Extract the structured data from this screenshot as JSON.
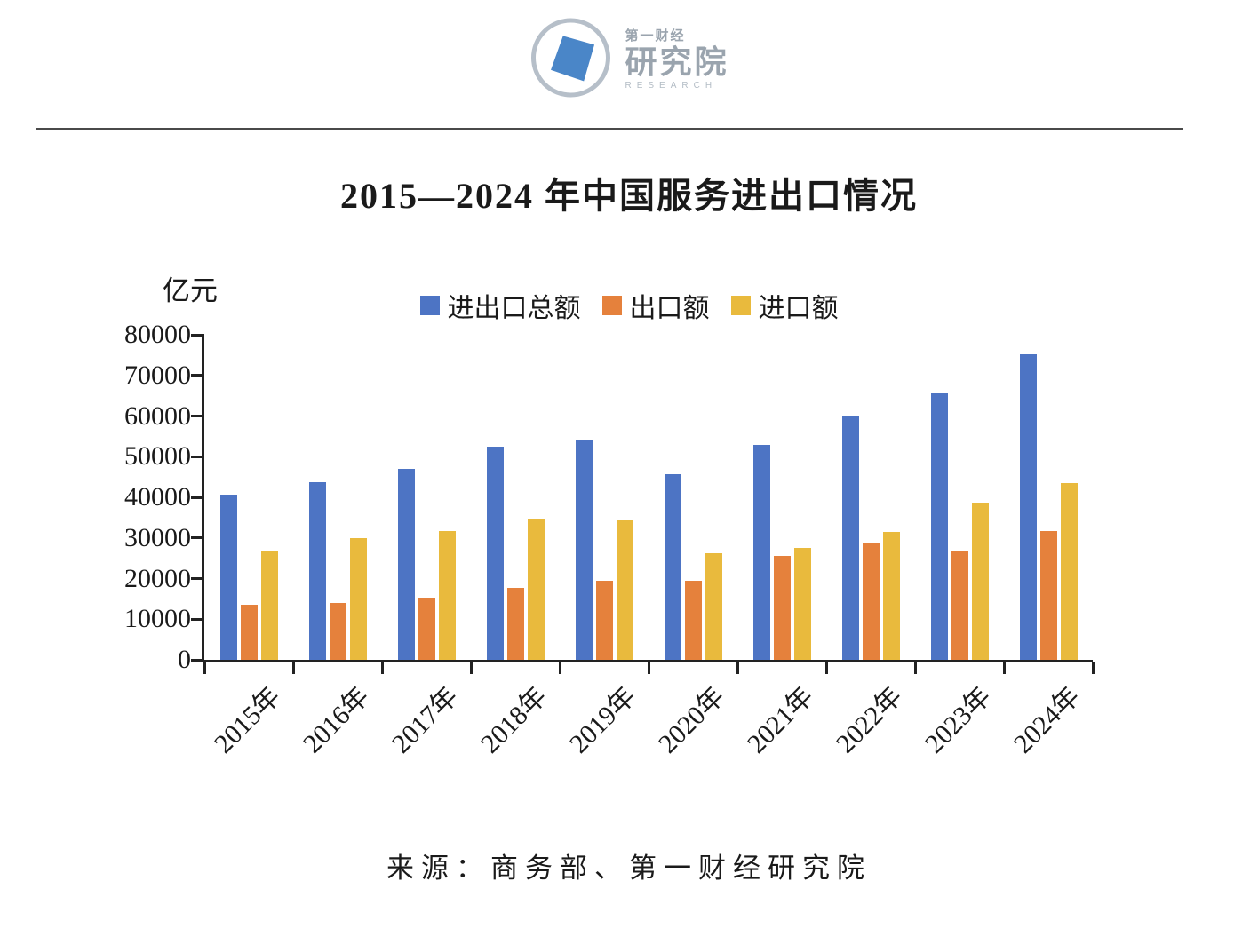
{
  "logo": {
    "brand_line1": "第一财经",
    "brand_line2": "研究院",
    "brand_line3": "RESEARCH",
    "ring_color": "#b6bfc9",
    "mark_color": "#4a86c8"
  },
  "title": "2015—2024 年中国服务进出口情况",
  "source": "来源：商务部、第一财经研究院",
  "chart_data": {
    "type": "bar",
    "title": "2015—2024 年中国服务进出口情况",
    "xlabel": "",
    "ylabel": "亿元",
    "ylim": [
      0,
      80000
    ],
    "ytick_step": 10000,
    "grid": false,
    "legend_position": "top",
    "categories": [
      "2015年",
      "2016年",
      "2017年",
      "2018年",
      "2019年",
      "2020年",
      "2021年",
      "2022年",
      "2023年",
      "2024年"
    ],
    "series": [
      {
        "name": "进出口总额",
        "color": "#4d74c4",
        "values": [
          40700,
          43800,
          46900,
          52400,
          54200,
          45600,
          52900,
          59800,
          65800,
          75200
        ]
      },
      {
        "name": "出口额",
        "color": "#e5813c",
        "values": [
          13600,
          14000,
          15400,
          17700,
          19500,
          19400,
          25500,
          28600,
          26900,
          31800
        ]
      },
      {
        "name": "进口额",
        "color": "#e9ba3d",
        "values": [
          26700,
          30000,
          31700,
          34700,
          34400,
          26300,
          27600,
          31400,
          38800,
          43500
        ]
      }
    ]
  }
}
